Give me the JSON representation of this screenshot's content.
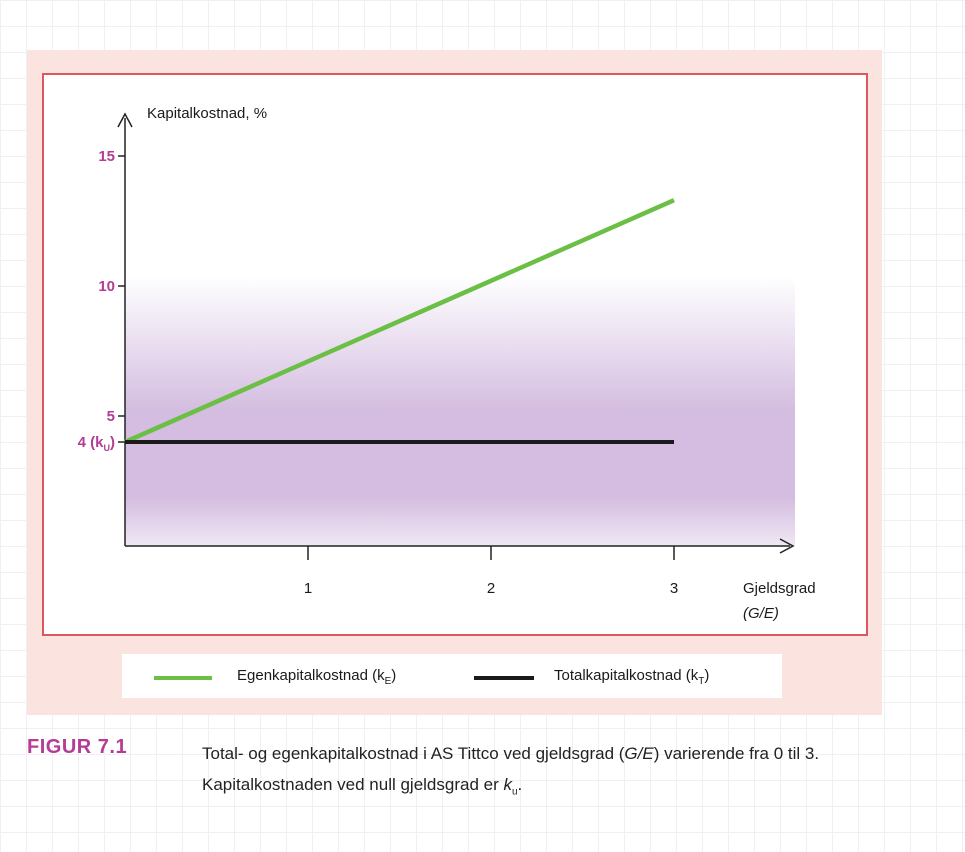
{
  "chart_data": {
    "type": "line",
    "ylabel": "Kapitalkostnad, %",
    "xlabel_line1": "Gjeldsgrad",
    "xlabel_line2": "(G/E)",
    "x_ticks": [
      {
        "value": 1,
        "label": "1"
      },
      {
        "value": 2,
        "label": "2"
      },
      {
        "value": 3,
        "label": "3"
      }
    ],
    "y_ticks": [
      {
        "value": 15,
        "label": "15"
      },
      {
        "value": 10,
        "label": "10"
      },
      {
        "value": 5,
        "label": "5"
      },
      {
        "value": 4,
        "label_prefix": "4 (k",
        "label_sub": "U",
        "label_suffix": ")"
      }
    ],
    "xlim": [
      0,
      3.6
    ],
    "ylim": [
      0,
      16.5
    ],
    "series": [
      {
        "name": "Egenkapitalkostnad (kE)",
        "color": "#6cbf45",
        "x": [
          0,
          3
        ],
        "y": [
          4,
          13.3
        ]
      },
      {
        "name": "Totalkapitalkostnad (kT)",
        "color": "#1a1a1a",
        "x": [
          0,
          3
        ],
        "y": [
          4,
          4
        ]
      }
    ],
    "tick_label_color": "#b53c95",
    "shading_color": "#d4bde0",
    "grid": false
  },
  "legend": [
    {
      "prefix": "Egenkapitalkostnad (k",
      "sub": "E",
      "suffix": ")",
      "color": "#6cbf45"
    },
    {
      "prefix": "Totalkapitalkostnad (k",
      "sub": "T",
      "suffix": ")",
      "color": "#1a1a1a"
    }
  ],
  "caption": {
    "label": "FIGUR 7.1",
    "text_part1": "Total- og egenkapitalkostnad i AS Tittco ved gjeldsgrad (",
    "text_italic": "G/E",
    "text_part2": ") varierende fra 0 til 3. Kapitalkostnaden ved null gjeldsgrad er ",
    "text_k": "k",
    "text_sub": "u",
    "text_end": "."
  }
}
